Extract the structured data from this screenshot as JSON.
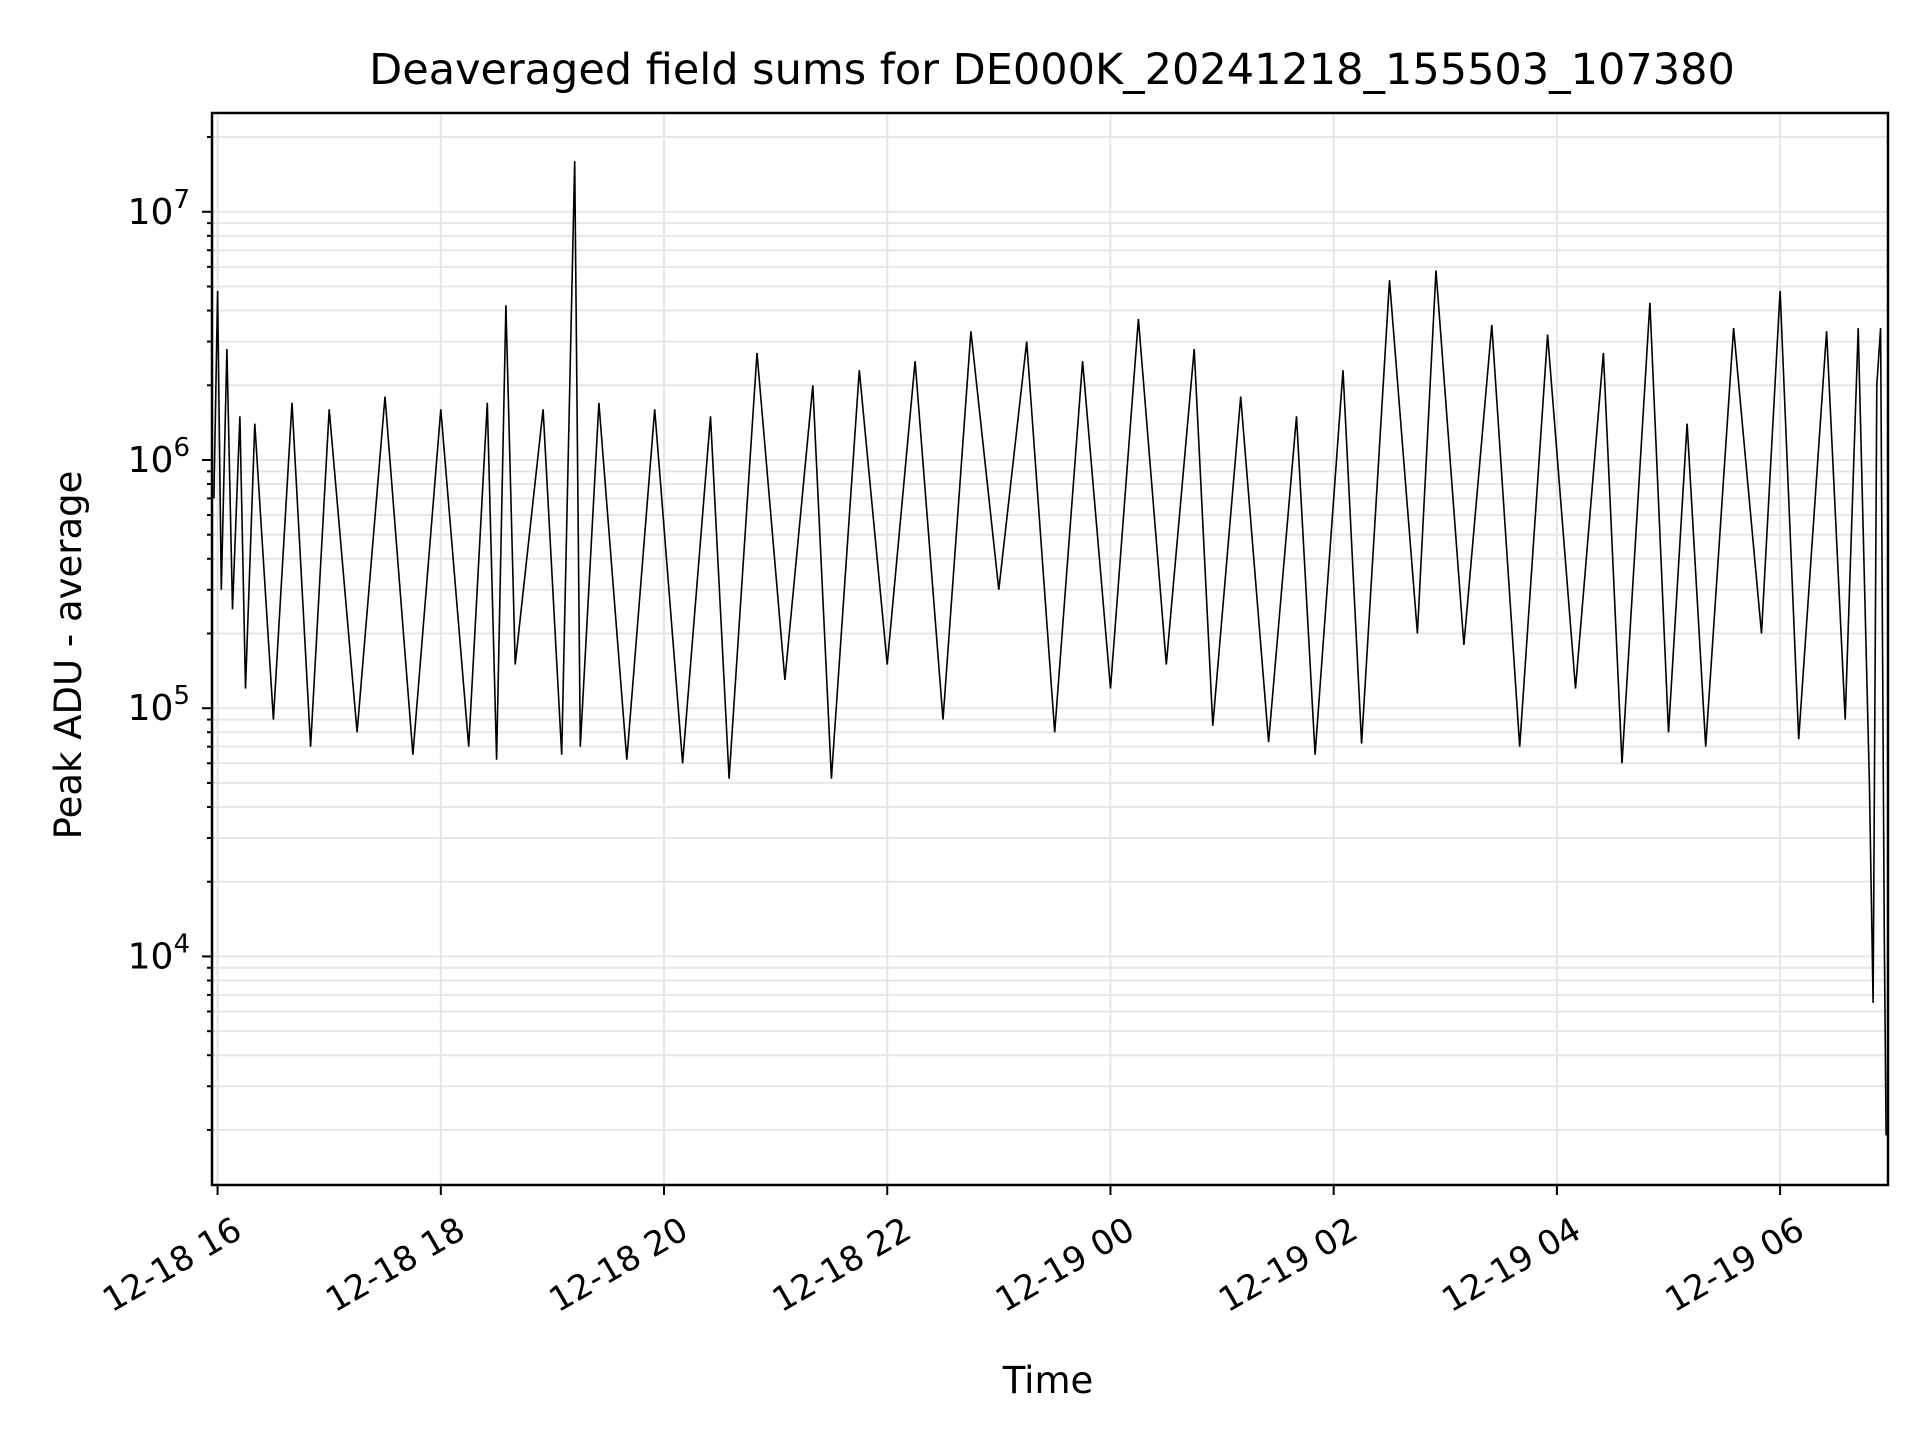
{
  "chart_data": {
    "type": "line",
    "title": "Deaveraged field sums for DE000K_20241218_155503_107380",
    "xlabel": "Time",
    "ylabel": "Peak ADU - average",
    "x_type": "datetime",
    "x_range": [
      "2024-12-18 15:57",
      "2024-12-19 06:58"
    ],
    "y_scale": "log",
    "ylim": [
      1200,
      25000000
    ],
    "grid": true,
    "x_ticks": [
      {
        "value": "2024-12-18 16:00",
        "label": "12-18 16"
      },
      {
        "value": "2024-12-18 18:00",
        "label": "12-18 18"
      },
      {
        "value": "2024-12-18 20:00",
        "label": "12-18 20"
      },
      {
        "value": "2024-12-18 22:00",
        "label": "12-18 22"
      },
      {
        "value": "2024-12-19 00:00",
        "label": "12-19 00"
      },
      {
        "value": "2024-12-19 02:00",
        "label": "12-19 02"
      },
      {
        "value": "2024-12-19 04:00",
        "label": "12-19 04"
      },
      {
        "value": "2024-12-19 06:00",
        "label": "12-19 06"
      }
    ],
    "y_ticks": [
      {
        "value": 10000,
        "base": "10",
        "exp": "4"
      },
      {
        "value": 100000,
        "base": "10",
        "exp": "5"
      },
      {
        "value": 1000000,
        "base": "10",
        "exp": "6"
      },
      {
        "value": 10000000,
        "base": "10",
        "exp": "7"
      }
    ],
    "series": [
      {
        "color": "#000000",
        "points": [
          [
            "2024-12-18 15:58",
            700000
          ],
          [
            "2024-12-18 16:00",
            4800000
          ],
          [
            "2024-12-18 16:02",
            300000
          ],
          [
            "2024-12-18 16:05",
            2800000
          ],
          [
            "2024-12-18 16:08",
            250000
          ],
          [
            "2024-12-18 16:12",
            1500000
          ],
          [
            "2024-12-18 16:15",
            120000
          ],
          [
            "2024-12-18 16:20",
            1400000
          ],
          [
            "2024-12-18 16:30",
            90000
          ],
          [
            "2024-12-18 16:40",
            1700000
          ],
          [
            "2024-12-18 16:50",
            70000
          ],
          [
            "2024-12-18 17:00",
            1600000
          ],
          [
            "2024-12-18 17:15",
            80000
          ],
          [
            "2024-12-18 17:30",
            1800000
          ],
          [
            "2024-12-18 17:45",
            65000
          ],
          [
            "2024-12-18 18:00",
            1600000
          ],
          [
            "2024-12-18 18:15",
            70000
          ],
          [
            "2024-12-18 18:25",
            1700000
          ],
          [
            "2024-12-18 18:30",
            62000
          ],
          [
            "2024-12-18 18:35",
            4200000
          ],
          [
            "2024-12-18 18:40",
            150000
          ],
          [
            "2024-12-18 18:55",
            1600000
          ],
          [
            "2024-12-18 19:05",
            65000
          ],
          [
            "2024-12-18 19:12",
            16000000
          ],
          [
            "2024-12-18 19:15",
            70000
          ],
          [
            "2024-12-18 19:25",
            1700000
          ],
          [
            "2024-12-18 19:40",
            62000
          ],
          [
            "2024-12-18 19:55",
            1600000
          ],
          [
            "2024-12-18 20:10",
            60000
          ],
          [
            "2024-12-18 20:25",
            1500000
          ],
          [
            "2024-12-18 20:35",
            52000
          ],
          [
            "2024-12-18 20:50",
            2700000
          ],
          [
            "2024-12-18 21:05",
            130000
          ],
          [
            "2024-12-18 21:20",
            2000000
          ],
          [
            "2024-12-18 21:30",
            52000
          ],
          [
            "2024-12-18 21:45",
            2300000
          ],
          [
            "2024-12-18 22:00",
            150000
          ],
          [
            "2024-12-18 22:15",
            2500000
          ],
          [
            "2024-12-18 22:30",
            90000
          ],
          [
            "2024-12-18 22:45",
            3300000
          ],
          [
            "2024-12-18 23:00",
            300000
          ],
          [
            "2024-12-18 23:15",
            3000000
          ],
          [
            "2024-12-18 23:30",
            80000
          ],
          [
            "2024-12-18 23:45",
            2500000
          ],
          [
            "2024-12-19 00:00",
            120000
          ],
          [
            "2024-12-19 00:15",
            3700000
          ],
          [
            "2024-12-19 00:30",
            150000
          ],
          [
            "2024-12-19 00:45",
            2800000
          ],
          [
            "2024-12-19 00:55",
            85000
          ],
          [
            "2024-12-19 01:10",
            1800000
          ],
          [
            "2024-12-19 01:25",
            73000
          ],
          [
            "2024-12-19 01:40",
            1500000
          ],
          [
            "2024-12-19 01:50",
            65000
          ],
          [
            "2024-12-19 02:05",
            2300000
          ],
          [
            "2024-12-19 02:15",
            72000
          ],
          [
            "2024-12-19 02:30",
            5300000
          ],
          [
            "2024-12-19 02:45",
            200000
          ],
          [
            "2024-12-19 02:55",
            5800000
          ],
          [
            "2024-12-19 03:10",
            180000
          ],
          [
            "2024-12-19 03:25",
            3500000
          ],
          [
            "2024-12-19 03:40",
            70000
          ],
          [
            "2024-12-19 03:55",
            3200000
          ],
          [
            "2024-12-19 04:10",
            120000
          ],
          [
            "2024-12-19 04:25",
            2700000
          ],
          [
            "2024-12-19 04:35",
            60000
          ],
          [
            "2024-12-19 04:50",
            4300000
          ],
          [
            "2024-12-19 05:00",
            80000
          ],
          [
            "2024-12-19 05:10",
            1400000
          ],
          [
            "2024-12-19 05:20",
            70000
          ],
          [
            "2024-12-19 05:35",
            3400000
          ],
          [
            "2024-12-19 05:50",
            200000
          ],
          [
            "2024-12-19 06:00",
            4800000
          ],
          [
            "2024-12-19 06:10",
            75000
          ],
          [
            "2024-12-19 06:25",
            3300000
          ],
          [
            "2024-12-19 06:35",
            90000
          ],
          [
            "2024-12-19 06:42",
            3400000
          ],
          [
            "2024-12-19 06:48",
            50000
          ],
          [
            "2024-12-19 06:50",
            6500
          ],
          [
            "2024-12-19 06:52",
            2000000
          ],
          [
            "2024-12-19 06:54",
            3400000
          ],
          [
            "2024-12-19 06:56",
            12000
          ],
          [
            "2024-12-19 06:57",
            1900
          ]
        ]
      }
    ]
  }
}
